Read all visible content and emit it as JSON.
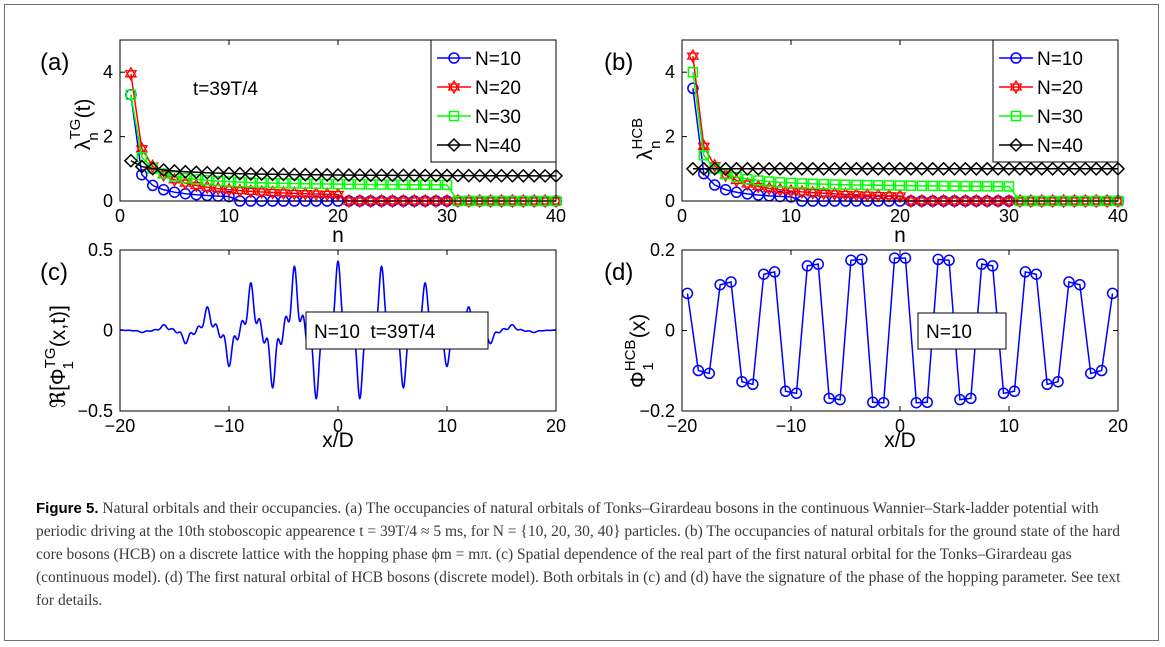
{
  "panels": {
    "a": {
      "label": "(a)",
      "ylabel_base": "λ",
      "ylabel_sup": "TG",
      "ylabel_sub": "n",
      "ylabel_tail": "(t)",
      "xlabel": "n",
      "annotation": "t=39T/4"
    },
    "b": {
      "label": "(b)",
      "ylabel_base": "λ",
      "ylabel_sup": "HCB",
      "ylabel_sub": "n",
      "xlabel": "n"
    },
    "c": {
      "label": "(c)",
      "ylabel_base": "ℜ[Φ",
      "ylabel_sup": "TG",
      "ylabel_sub": "1",
      "ylabel_tail": "(x,t)]",
      "xlabel": "x/D",
      "annotation": "N=10  t=39T/4"
    },
    "d": {
      "label": "(d)",
      "ylabel_base": "Φ",
      "ylabel_sup": "HCB",
      "ylabel_sub": "1",
      "ylabel_tail": "(x)",
      "xlabel": "x/D",
      "annotation": "N=10"
    }
  },
  "caption": {
    "fig_label": "Figure 5.",
    "text": " Natural orbitals and their occupancies. (a) The occupancies of natural orbitals of Tonks–Girardeau bosons in the continuous Wannier–Stark-ladder potential with periodic driving at the 10th stoboscopic appearence t = 39T/4 ≈ 5 ms, for N = {10, 20, 30, 40} particles. (b) The occupancies of natural orbitals for the ground state of the hard core bosons (HCB) on a discrete lattice with the hopping phase ϕm = mπ. (c) Spatial dependence of the real part of the first natural orbital for the Tonks–Girardeau gas (continuous model). (d) The first natural orbital of HCB bosons (discrete model). Both orbitals in (c) and (d) have the signature of the phase of the hopping parameter. See text for details."
  },
  "chart_data": [
    {
      "panel": "a",
      "type": "line",
      "xlabel": "n",
      "ylabel": "λn^TG(t)",
      "xlim": [
        0,
        40
      ],
      "ylim": [
        0,
        5
      ],
      "xticks": [
        0,
        10,
        20,
        30,
        40
      ],
      "yticks": [
        0,
        2,
        4
      ],
      "legend": "top-right",
      "series": [
        {
          "name": "N=10",
          "color": "#0000ff",
          "marker": "circle",
          "n": 10,
          "y1": 3.3,
          "tail": 0.02,
          "decay": 4
        },
        {
          "name": "N=20",
          "color": "#ff0000",
          "marker": "star",
          "n": 20,
          "y1": 3.95,
          "tail": 0.05,
          "decay": 9
        },
        {
          "name": "N=30",
          "color": "#00ff00",
          "marker": "square",
          "n": 30,
          "y1": 3.3,
          "tail": 0.45,
          "decay": 6
        },
        {
          "name": "N=40",
          "color": "#000000",
          "marker": "diamond",
          "n": 40,
          "y1": 1.25,
          "tail": 0.75,
          "decay": 30
        }
      ]
    },
    {
      "panel": "b",
      "type": "line",
      "xlabel": "n",
      "ylabel": "λn^HCB",
      "xlim": [
        0,
        40
      ],
      "ylim": [
        0,
        5
      ],
      "xticks": [
        0,
        10,
        20,
        30,
        40
      ],
      "yticks": [
        0,
        2,
        4
      ],
      "legend": "top-right",
      "series": [
        {
          "name": "N=10",
          "color": "#0000ff",
          "marker": "circle",
          "n": 10,
          "y1": 3.5,
          "tail": 0.0,
          "decay": 4
        },
        {
          "name": "N=20",
          "color": "#ff0000",
          "marker": "star",
          "n": 20,
          "y1": 4.5,
          "tail": 0.0,
          "decay": 8
        },
        {
          "name": "N=30",
          "color": "#00ff00",
          "marker": "square",
          "n": 30,
          "y1": 4.0,
          "tail": 0.4,
          "decay": 5
        },
        {
          "name": "N=40",
          "color": "#000000",
          "marker": "diamond",
          "n": 40,
          "y1": 1.0,
          "tail": 1.0,
          "decay": 1
        }
      ]
    },
    {
      "panel": "c",
      "type": "line",
      "xlabel": "x/D",
      "ylabel": "ℜ[Φ1^TG(x,t)]",
      "xlim": [
        -20,
        20
      ],
      "ylim": [
        -0.5,
        0.5
      ],
      "xticks": [
        -20,
        -10,
        0,
        10,
        20
      ],
      "yticks": [
        -0.5,
        0,
        0.5
      ],
      "series": [
        {
          "name": "",
          "color": "#0000ff",
          "amplitude": 0.43,
          "sites": 40,
          "period": 4,
          "width": 11
        }
      ]
    },
    {
      "panel": "d",
      "type": "line",
      "xlabel": "x/D",
      "ylabel": "Φ1^HCB(x)",
      "xlim": [
        -20,
        20
      ],
      "ylim": [
        -0.2,
        0.2
      ],
      "xticks": [
        -20,
        -10,
        0,
        10,
        20
      ],
      "yticks": [
        -0.2,
        0,
        0.2
      ],
      "series": [
        {
          "name": "",
          "color": "#0000ff",
          "marker": "circle",
          "sites": 40,
          "amplitude": 0.18,
          "x_start": -19.5,
          "x_step": 1
        }
      ]
    }
  ]
}
